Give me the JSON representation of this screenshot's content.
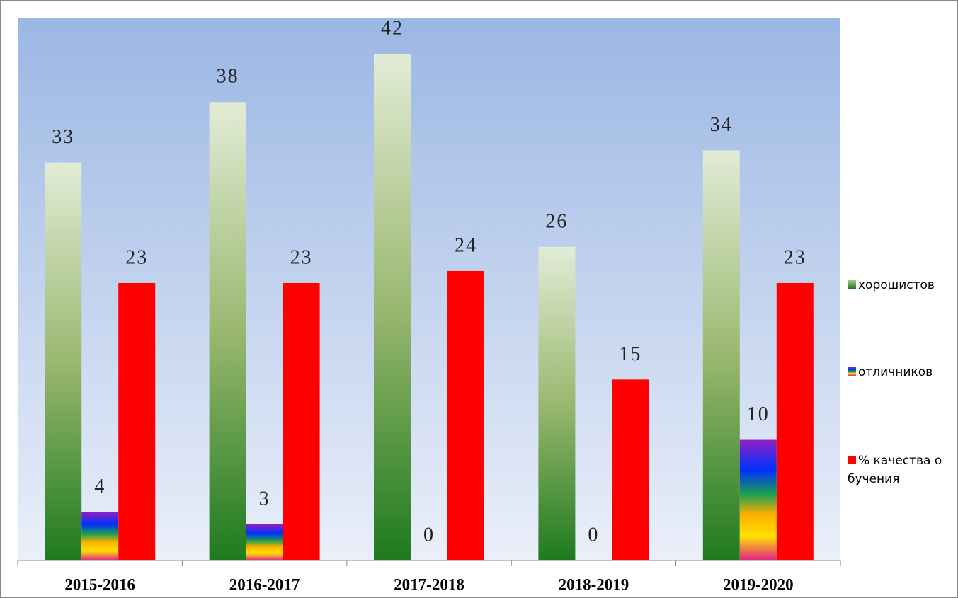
{
  "chart_data": {
    "type": "bar",
    "categories": [
      "2015-2016",
      "2016-2017",
      "2017-2018",
      "2018-2019",
      "2019-2020"
    ],
    "series": [
      {
        "name": "хорошистов",
        "color": "#1e7a1e",
        "values": [
          33,
          38,
          42,
          26,
          34
        ]
      },
      {
        "name": "отличников",
        "color": "#7030a0",
        "values": [
          4,
          3,
          0,
          0,
          10
        ]
      },
      {
        "name": "% качества обучения",
        "color": "#ff0000",
        "values": [
          23,
          23,
          24,
          15,
          23
        ]
      }
    ],
    "ylim": [
      0,
      45
    ],
    "legend": "right"
  }
}
